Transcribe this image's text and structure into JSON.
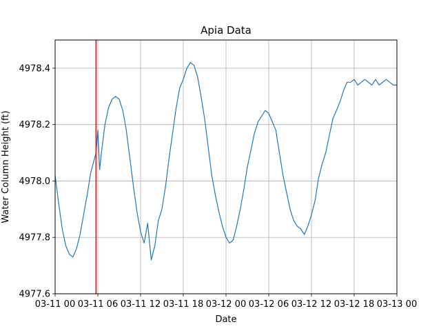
{
  "chart_data": {
    "type": "line",
    "title": "Apia Data",
    "xlabel": "Date",
    "ylabel": "Water Column Height (ft)",
    "grid": true,
    "xlim": [
      "03-11 00",
      "03-13 00"
    ],
    "ylim": [
      4977.6,
      4978.5
    ],
    "x_ticks": [
      "03-11 00",
      "03-11 06",
      "03-11 12",
      "03-11 18",
      "03-12 00",
      "03-12 06",
      "03-12 12",
      "03-12 18",
      "03-13 00"
    ],
    "y_ticks": [
      4977.6,
      4977.8,
      4978.0,
      4978.2,
      4978.4
    ],
    "x_tick_labels": [
      "03-11 00",
      "03-11 06",
      "03-11 12",
      "03-11 18",
      "03-12 00",
      "03-12 06",
      "03-12 12",
      "03-12 18",
      "03-13 00"
    ],
    "y_tick_labels": [
      "4977.6",
      "4977.8",
      "4978.0",
      "4978.2",
      "4978.4"
    ],
    "vertical_marker": {
      "x": "03-11 05:45",
      "color": "#d62728"
    },
    "series": [
      {
        "color": "#1f77b4",
        "x": [
          "03-11 00:00",
          "03-11 00:30",
          "03-11 01:00",
          "03-11 01:30",
          "03-11 02:00",
          "03-11 02:30",
          "03-11 03:00",
          "03-11 03:30",
          "03-11 04:00",
          "03-11 04:30",
          "03-11 05:00",
          "03-11 05:45",
          "03-11 06:00",
          "03-11 06:15",
          "03-11 06:30",
          "03-11 07:00",
          "03-11 07:30",
          "03-11 08:00",
          "03-11 08:30",
          "03-11 09:00",
          "03-11 09:30",
          "03-11 10:00",
          "03-11 10:30",
          "03-11 11:00",
          "03-11 11:30",
          "03-11 12:00",
          "03-11 12:30",
          "03-11 13:00",
          "03-11 13:30",
          "03-11 14:00",
          "03-11 14:30",
          "03-11 15:00",
          "03-11 15:30",
          "03-11 16:00",
          "03-11 16:30",
          "03-11 17:00",
          "03-11 17:30",
          "03-11 18:00",
          "03-11 18:30",
          "03-11 19:00",
          "03-11 19:30",
          "03-11 20:00",
          "03-11 20:30",
          "03-11 21:00",
          "03-11 21:30",
          "03-11 22:00",
          "03-11 22:30",
          "03-11 23:00",
          "03-11 23:30",
          "03-12 00:00",
          "03-12 00:30",
          "03-12 01:00",
          "03-12 01:30",
          "03-12 02:00",
          "03-12 02:30",
          "03-12 03:00",
          "03-12 03:30",
          "03-12 04:00",
          "03-12 04:30",
          "03-12 05:00",
          "03-12 05:30",
          "03-12 06:00",
          "03-12 06:30",
          "03-12 07:00",
          "03-12 07:30",
          "03-12 08:00",
          "03-12 08:30",
          "03-12 09:00",
          "03-12 09:30",
          "03-12 10:00",
          "03-12 10:30",
          "03-12 11:00",
          "03-12 11:30",
          "03-12 12:00",
          "03-12 12:30",
          "03-12 13:00",
          "03-12 13:30",
          "03-12 14:00",
          "03-12 14:30",
          "03-12 15:00",
          "03-12 15:30",
          "03-12 16:00",
          "03-12 16:30",
          "03-12 17:00",
          "03-12 17:30",
          "03-12 18:00",
          "03-12 18:30",
          "03-12 19:00",
          "03-12 19:30",
          "03-12 20:00",
          "03-12 20:30",
          "03-12 21:00",
          "03-12 21:30",
          "03-12 22:00",
          "03-12 22:30",
          "03-12 23:00",
          "03-12 23:30",
          "03-13 00:00"
        ],
        "y": [
          4978.02,
          4977.92,
          4977.83,
          4977.77,
          4977.74,
          4977.73,
          4977.76,
          4977.81,
          4977.88,
          4977.95,
          4978.03,
          4978.1,
          4978.18,
          4978.04,
          4978.1,
          4978.2,
          4978.26,
          4978.29,
          4978.3,
          4978.29,
          4978.25,
          4978.18,
          4978.08,
          4977.98,
          4977.89,
          4977.82,
          4977.78,
          4977.85,
          4977.72,
          4977.77,
          4977.86,
          4977.9,
          4977.98,
          4978.08,
          4978.17,
          4978.26,
          4978.33,
          4978.36,
          4978.4,
          4978.42,
          4978.41,
          4978.37,
          4978.3,
          4978.22,
          4978.12,
          4978.02,
          4977.95,
          4977.89,
          4977.84,
          4977.8,
          4977.78,
          4977.79,
          4977.84,
          4977.9,
          4977.97,
          4978.05,
          4978.11,
          4978.17,
          4978.21,
          4978.23,
          4978.25,
          4978.24,
          4978.21,
          4978.18,
          4978.1,
          4978.02,
          4977.96,
          4977.9,
          4977.86,
          4977.84,
          4977.83,
          4977.81,
          4977.84,
          4977.88,
          4977.93,
          4978.01,
          4978.06,
          4978.1,
          4978.16,
          4978.22,
          4978.25,
          4978.28,
          4978.32,
          4978.35,
          4978.35,
          4978.36,
          4978.34,
          4978.35,
          4978.36,
          4978.35,
          4978.34,
          4978.36,
          4978.34,
          4978.35,
          4978.36,
          4978.35,
          4978.34,
          4978.34
        ]
      }
    ]
  }
}
